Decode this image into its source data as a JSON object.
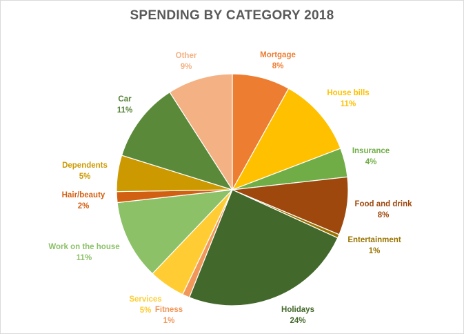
{
  "chart_data": {
    "type": "pie",
    "title": "SPENDING BY CATEGORY 2018",
    "slices": [
      {
        "name": "Mortgage",
        "value": 8,
        "label": "8%",
        "color": "#ED7D31",
        "label_color": "#ED7D31"
      },
      {
        "name": "House bills",
        "value": 11,
        "label": "11%",
        "color": "#FFC000",
        "label_color": "#FFC000"
      },
      {
        "name": "Insurance",
        "value": 4,
        "label": "4%",
        "color": "#70AD47",
        "label_color": "#70AD47"
      },
      {
        "name": "Food and drink",
        "value": 8,
        "label": "8%",
        "color": "#9E480E",
        "label_color": "#9E480E"
      },
      {
        "name": "Entertainment",
        "value": 0.5,
        "label": "1%",
        "color": "#997300",
        "label_color": "#997300"
      },
      {
        "name": "Holidays",
        "value": 24,
        "label": "24%",
        "color": "#43682B",
        "label_color": "#43682B"
      },
      {
        "name": "Fitness",
        "value": 1,
        "label": "1%",
        "color": "#F1975A",
        "label_color": "#F1975A"
      },
      {
        "name": "Services",
        "value": 5,
        "label": "5%",
        "color": "#FFCD33",
        "label_color": "#FFCD33"
      },
      {
        "name": "Work on the house",
        "value": 11,
        "label": "11%",
        "color": "#8CC168",
        "label_color": "#8CC168"
      },
      {
        "name": "Hair/beauty",
        "value": 1.5,
        "label": "2%",
        "color": "#D26012",
        "label_color": "#D26012"
      },
      {
        "name": "Dependents",
        "value": 5,
        "label": "5%",
        "color": "#CC9A00",
        "label_color": "#CC9A00"
      },
      {
        "name": "Car",
        "value": 11,
        "label": "11%",
        "color": "#5A8A39",
        "label_color": "#548235"
      },
      {
        "name": "Other",
        "value": 9,
        "label": "9%",
        "color": "#F4B183",
        "label_color": "#F4B183"
      }
    ]
  }
}
